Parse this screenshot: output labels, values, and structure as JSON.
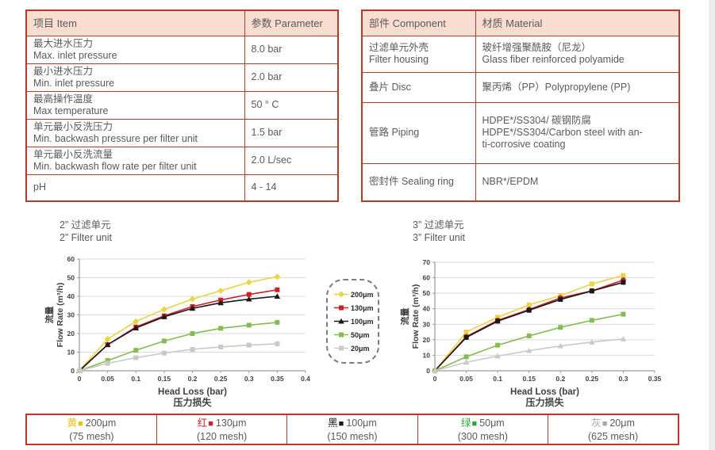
{
  "theme": {
    "accent_border": "#b23b2a",
    "header_bg": "#f8ddd0",
    "table_text": "#595959",
    "grid": "#d9d9d9",
    "axis": "#9a9a9a",
    "chart_text": "#404040",
    "page_edge": "#ececec"
  },
  "left_table": {
    "headers": {
      "item": "项目 Item",
      "parameter": "参数 Parameter"
    },
    "rows": [
      {
        "lines": [
          "最大进水压力",
          "Max. inlet pressure"
        ],
        "value": "8.0 bar"
      },
      {
        "lines": [
          "最小进水压力",
          "Min. inlet pressure"
        ],
        "value": "2.0 bar"
      },
      {
        "lines": [
          "最高操作温度",
          "Max temperature"
        ],
        "value": "50 ° C"
      },
      {
        "lines": [
          "单元最小反洗压力",
          "Min. backwash pressure per filter unit"
        ],
        "value": "1.5 bar"
      },
      {
        "lines": [
          "单元最小反洗流量",
          "Min. backwash flow rate per filter unit"
        ],
        "value": "2.0 L/sec"
      },
      {
        "lines": [
          "pH"
        ],
        "value": "4 - 14"
      }
    ]
  },
  "right_table": {
    "headers": {
      "component": "部件 Component",
      "material": "材质 Material"
    },
    "rows": [
      {
        "component": [
          "过滤单元外壳",
          "Filter housing"
        ],
        "material": [
          "玻纤增强聚酰胺（尼龙）",
          "Glass fiber reinforced polyamide"
        ]
      },
      {
        "component": [
          "叠片 Disc"
        ],
        "material": [
          "聚丙烯（PP）Polypropylene (PP)"
        ]
      },
      {
        "component": [
          "管路 Piping"
        ],
        "material": [
          "HDPE*/SS304/ 碳钢防腐",
          "HDPE*/SS304/Carbon steel with an-",
          "ti-corrosive coating"
        ]
      },
      {
        "component": [
          "密封件 Sealing ring"
        ],
        "material": [
          "NBR*/EPDM"
        ]
      }
    ]
  },
  "chart_data": [
    {
      "type": "line",
      "title_cn": "2” 过滤单元",
      "title_en": "2” Filter unit",
      "xlabel": "Head Loss (bar)",
      "xlabel_cn": "压力损失",
      "ylabel_cn": "流量",
      "ylabel": "Flow Rate (m³/h)",
      "xlim": [
        0,
        0.4
      ],
      "ylim": [
        0,
        60
      ],
      "xticks": [
        "0",
        "0.05",
        "0.1",
        "0.15",
        "0.2",
        "0.25",
        "0.3",
        "0.35",
        "0.4"
      ],
      "yticks": [
        0,
        10,
        20,
        30,
        40,
        50,
        60
      ],
      "grid": true,
      "legend_position": "none",
      "x": [
        0,
        0.05,
        0.1,
        0.15,
        0.2,
        0.25,
        0.3,
        0.35
      ],
      "series": [
        {
          "name": "200μm",
          "color": "#e7d546",
          "marker": "diamond",
          "values": [
            0,
            17,
            26.5,
            33,
            38.5,
            43,
            47.5,
            50.5
          ]
        },
        {
          "name": "130μm",
          "color": "#c8232a",
          "marker": "square",
          "values": [
            0,
            14,
            23.5,
            29.5,
            34.5,
            38,
            41,
            43.5
          ]
        },
        {
          "name": "100μm",
          "color": "#1a1a1a",
          "marker": "triangle",
          "values": [
            0,
            14,
            23,
            29,
            33.5,
            36.5,
            38.5,
            40
          ]
        },
        {
          "name": "50μm",
          "color": "#84bc51",
          "marker": "square",
          "values": [
            0,
            5.5,
            11,
            16,
            20,
            22.8,
            24.5,
            26
          ]
        },
        {
          "name": "20μm",
          "color": "#c9c9c9",
          "marker": "square",
          "values": [
            0,
            4,
            7,
            9.5,
            11.5,
            12.8,
            13.8,
            14.5
          ]
        }
      ]
    },
    {
      "type": "line",
      "title_cn": "3” 过滤单元",
      "title_en": "3” Filter unit",
      "xlabel": "Head Loss (bar)",
      "xlabel_cn": "压力损失",
      "ylabel_cn": "流量",
      "ylabel": "Flow Rate (m³/h)",
      "xlim": [
        0,
        0.35
      ],
      "ylim": [
        0,
        70
      ],
      "xticks": [
        "0",
        "0.05",
        "0.1",
        "0.15",
        "0.2",
        "0.25",
        "0.3",
        "0.35"
      ],
      "yticks": [
        0,
        10,
        20,
        30,
        40,
        50,
        60,
        70
      ],
      "grid": true,
      "legend_position": "none",
      "x": [
        0,
        0.05,
        0.1,
        0.15,
        0.2,
        0.25,
        0.3
      ],
      "series": [
        {
          "name": "200μm",
          "color": "#e7d546",
          "marker": "square",
          "values": [
            0,
            25,
            34.5,
            42.5,
            48.5,
            56,
            61.5
          ]
        },
        {
          "name": "130μm",
          "color": "#c8232a",
          "marker": "circle",
          "values": [
            0,
            22,
            32.5,
            39.5,
            47,
            51.5,
            58.5
          ]
        },
        {
          "name": "100μm",
          "color": "#1a1a1a",
          "marker": "square",
          "values": [
            0,
            21.5,
            32,
            39,
            46,
            51.5,
            57
          ]
        },
        {
          "name": "50μm",
          "color": "#84bc51",
          "marker": "square",
          "values": [
            0,
            9,
            16.5,
            22.5,
            28,
            32.5,
            36.5
          ]
        },
        {
          "name": "20μm",
          "color": "#c9c9c9",
          "marker": "triangle",
          "values": [
            0,
            5.5,
            9.5,
            13,
            16,
            18.5,
            20.5
          ]
        }
      ]
    }
  ],
  "legend_box": {
    "items": [
      {
        "label": "200μm",
        "color": "#e7d546",
        "marker": "diamond"
      },
      {
        "label": "130μm",
        "color": "#c8232a",
        "marker": "square"
      },
      {
        "label": "100μm",
        "color": "#1a1a1a",
        "marker": "triangle"
      },
      {
        "label": "50μm",
        "color": "#84bc51",
        "marker": "square"
      },
      {
        "label": "20μm",
        "color": "#c9c9c9",
        "marker": "square"
      }
    ]
  },
  "bottom_legend": {
    "swatch_glyph": "■",
    "items": [
      {
        "cn": "黄",
        "color": "#edbd18",
        "label": "200μm",
        "mesh": "(75 mesh)"
      },
      {
        "cn": "红",
        "color": "#c8232a",
        "label": "130μm",
        "mesh": "(120 mesh)"
      },
      {
        "cn": "黑",
        "color": "#1a1a1a",
        "label": "100μm",
        "mesh": "(150 mesh)"
      },
      {
        "cn": "绿",
        "color": "#33a53c",
        "label": "50μm",
        "mesh": "(300 mesh)"
      },
      {
        "cn": "灰",
        "color": "#a9a9a9",
        "label": "20μm",
        "mesh": "(625 mesh)"
      }
    ]
  }
}
